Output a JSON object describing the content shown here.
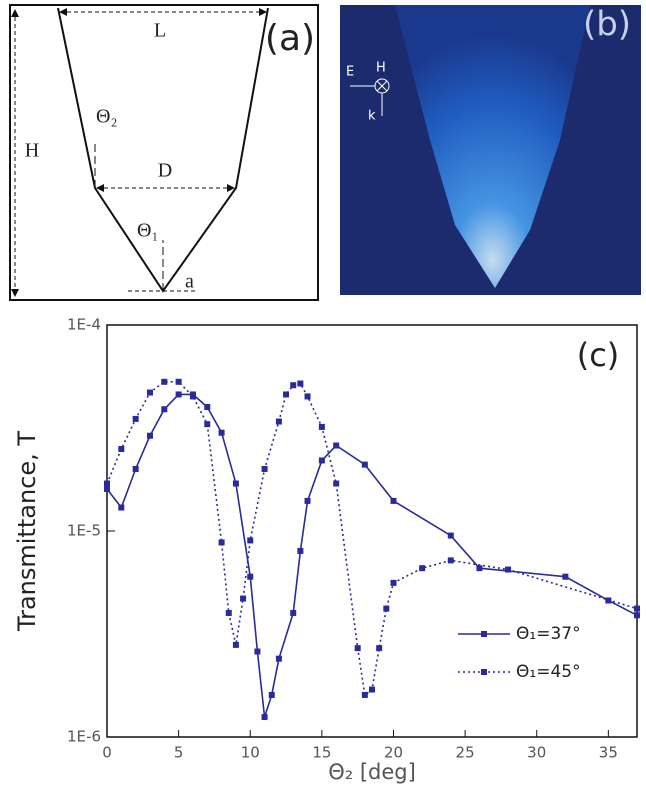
{
  "panel_a": {
    "label": "(a)",
    "length_top": "L",
    "height": "H",
    "width_mid": "D",
    "angle_upper": "Θ₂",
    "angle_lower": "Θ₁",
    "aperture": "a"
  },
  "panel_b": {
    "label": "(b)",
    "e_field": "E",
    "h_field": "H",
    "k_vector": "k"
  },
  "chart_data": {
    "type": "line",
    "panel_label": "(c)",
    "x_label": "Θ₂ [deg]",
    "y_label": "Transmittance, T",
    "xlim": [
      0,
      37
    ],
    "xticks": [
      0,
      5,
      10,
      15,
      20,
      25,
      30,
      35
    ],
    "ylim": [
      1e-06,
      0.0001
    ],
    "log_y": true,
    "yticks": [
      {
        "value": 1e-06,
        "label": "1E-6"
      },
      {
        "value": 1e-05,
        "label": "1E-5"
      },
      {
        "value": 0.0001,
        "label": "1E-4"
      }
    ],
    "legend": "lower right",
    "series": [
      {
        "name": "Θ₁=37°",
        "color": "#2a2a9a",
        "dash": "solid",
        "x": [
          0,
          1,
          2,
          3,
          4,
          5,
          6,
          7,
          8,
          9,
          10,
          10.5,
          11,
          11.5,
          12,
          13,
          13.5,
          14,
          15,
          16,
          18,
          20,
          24,
          26,
          32,
          35,
          37
        ],
        "values": [
          1.6e-05,
          1.3e-05,
          2e-05,
          2.9e-05,
          3.9e-05,
          4.6e-05,
          4.6e-05,
          4e-05,
          3e-05,
          1.7e-05,
          6e-06,
          2.6e-06,
          1.25e-06,
          1.6e-06,
          2.4e-06,
          4e-06,
          8e-06,
          1.4e-05,
          2.2e-05,
          2.6e-05,
          2.1e-05,
          1.4e-05,
          9.5e-06,
          6.6e-06,
          6e-06,
          4.6e-06,
          3.9e-06
        ]
      },
      {
        "name": "Θ₁=45°",
        "color": "#2a2a9a",
        "dash": "dotted",
        "x": [
          0,
          1,
          2,
          3,
          4,
          5,
          6,
          7,
          8,
          8.5,
          9,
          9.5,
          10,
          11,
          12,
          12.5,
          13,
          13.5,
          14,
          15,
          16,
          17.5,
          18,
          18.5,
          19,
          19.5,
          20,
          22,
          24,
          28,
          37
        ],
        "values": [
          1.7e-05,
          2.5e-05,
          3.5e-05,
          4.7e-05,
          5.3e-05,
          5.3e-05,
          4.5e-05,
          3.3e-05,
          8.8e-06,
          4e-06,
          2.8e-06,
          4.7e-06,
          9e-06,
          2e-05,
          3.4e-05,
          4.6e-05,
          5.1e-05,
          5.2e-05,
          4.5e-05,
          3.2e-05,
          1.7e-05,
          2.7e-06,
          1.6e-06,
          1.7e-06,
          2.7e-06,
          4.2e-06,
          5.6e-06,
          6.6e-06,
          7.2e-06,
          6.5e-06,
          4.2e-06
        ]
      }
    ]
  }
}
